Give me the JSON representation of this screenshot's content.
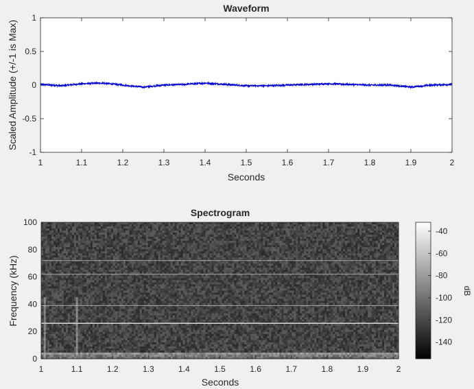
{
  "chart_data": [
    {
      "type": "line",
      "title": "Waveform",
      "xlabel": "Seconds",
      "ylabel": "Scaled Amplitude (+/-1 is Max)",
      "xlim": [
        1,
        2
      ],
      "ylim": [
        -1,
        1
      ],
      "xticks": [
        "1",
        "1.1",
        "1.2",
        "1.3",
        "1.4",
        "1.5",
        "1.6",
        "1.7",
        "1.8",
        "1.9",
        "2"
      ],
      "yticks": [
        "1",
        "0.5",
        "0",
        "-0.5",
        "-1"
      ],
      "line_color": "#0000cc",
      "series": [
        {
          "x": [
            1.0,
            1.05,
            1.1,
            1.15,
            1.2,
            1.25,
            1.3,
            1.35,
            1.4,
            1.45,
            1.5,
            1.55,
            1.6,
            1.65,
            1.7,
            1.75,
            1.8,
            1.85,
            1.9,
            1.95,
            2.0
          ],
          "values": [
            0.01,
            -0.01,
            0.02,
            0.03,
            0.0,
            -0.03,
            0.0,
            0.01,
            0.03,
            0.01,
            -0.01,
            -0.01,
            0.0,
            0.01,
            0.02,
            0.01,
            0.0,
            0.0,
            -0.03,
            0.0,
            0.01
          ]
        }
      ]
    },
    {
      "type": "heatmap",
      "title": "Spectrogram",
      "xlabel": "Seconds",
      "ylabel": "Frequency (kHz)",
      "xlim": [
        1,
        2
      ],
      "ylim": [
        0,
        100
      ],
      "xticks": [
        "1",
        "1.1",
        "1.2",
        "1.3",
        "1.4",
        "1.5",
        "1.6",
        "1.7",
        "1.8",
        "1.9",
        "2"
      ],
      "yticks": [
        "100",
        "80",
        "60",
        "40",
        "20",
        "0"
      ],
      "tonal_lines_khz": [
        26,
        39,
        62,
        72
      ],
      "transient_times_s": [
        1.01,
        1.1
      ],
      "colorbar": {
        "label": "dB",
        "ticks": [
          "-40",
          "-60",
          "-80",
          "-100",
          "-120",
          "-140"
        ],
        "range_db": [
          -155,
          -32
        ],
        "colormap": "gray"
      }
    }
  ]
}
